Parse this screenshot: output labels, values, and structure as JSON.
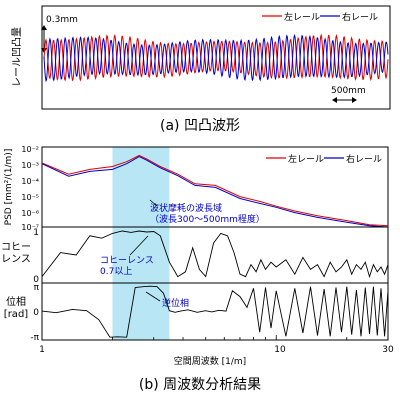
{
  "chart_data": [
    {
      "type": "line",
      "caption": "(a) 凹凸波形",
      "ylabel": "レール凹凸量",
      "scale_label": "0.3mm",
      "x_scale_label": "500mm",
      "legend_position": "top-right",
      "series": [
        {
          "name": "左レール",
          "color": "#e00000",
          "peaks": 45,
          "amplitude_mm": 0.3
        },
        {
          "name": "右レール",
          "color": "#0000cc",
          "peaks": 45,
          "amplitude_mm": 0.3
        }
      ]
    },
    {
      "type": "line",
      "caption": "(b) 周波数分析結果",
      "xlabel": "空間周波数 [1/m]",
      "x_scale": "log",
      "xlim": [
        1,
        30
      ],
      "xticks": [
        "1",
        "10",
        "30"
      ],
      "highlight_band": [
        2.0,
        3.5
      ],
      "panels": [
        {
          "ylabel": "PSD [mm²/(1/m)]",
          "y_scale": "log",
          "ylim": [
            1e-07,
            0.01
          ],
          "yticks": [
            "10⁻²",
            "10⁻³",
            "10⁻⁴",
            "10⁻⁵",
            "10⁻⁶",
            "10⁻⁷"
          ],
          "legend_position": "top-right",
          "annotation": "波状摩耗の波長域\n（波長300〜500mm程度）",
          "series": [
            {
              "name": "左レール",
              "color": "#e00000",
              "x": [
                1,
                1.3,
                1.6,
                2.0,
                2.3,
                2.6,
                2.8,
                3.2,
                3.8,
                4.5,
                5.5,
                7,
                8.5,
                10,
                12,
                15,
                20,
                25,
                30
              ],
              "y": [
                0.001,
                0.0002,
                0.0004,
                0.0006,
                0.0012,
                0.003,
                0.0018,
                0.0006,
                0.0002,
                5e-05,
                4e-05,
                8e-06,
                4e-06,
                2e-06,
                1e-06,
                5e-07,
                2.5e-07,
                1.4e-07,
                1.2e-07
              ]
            },
            {
              "name": "右レール",
              "color": "#0000cc",
              "x": [
                1,
                1.3,
                1.6,
                2.0,
                2.3,
                2.6,
                2.8,
                3.2,
                3.8,
                4.5,
                5.5,
                7,
                8.5,
                10,
                12,
                15,
                20,
                25,
                30
              ],
              "y": [
                0.0009,
                0.00015,
                0.0003,
                0.0004,
                0.0009,
                0.0025,
                0.0015,
                0.0005,
                0.00016,
                4e-05,
                3e-05,
                6e-06,
                3e-06,
                1.7e-06,
                8e-07,
                4e-07,
                2e-07,
                1.2e-07,
                1e-07
              ]
            }
          ]
        },
        {
          "ylabel": "コヒー\nレンス",
          "ylim": [
            0,
            1
          ],
          "yticks": [
            "1",
            "0"
          ],
          "annotation": "コヒーレンス\n0.7以上",
          "series": [
            {
              "name": "coherence",
              "color": "#000000",
              "x": [
                1,
                1.2,
                1.4,
                1.6,
                1.8,
                2.0,
                2.2,
                2.4,
                2.6,
                2.8,
                3.0,
                3.2,
                3.5,
                3.8,
                4.1,
                4.4,
                4.7,
                5.0,
                5.4,
                5.8,
                6.2,
                6.6,
                7.0,
                7.4,
                7.8,
                8.2,
                8.6,
                9.0,
                9.5,
                10,
                11,
                12,
                13,
                14,
                15,
                16,
                17,
                18,
                19,
                20,
                21,
                22,
                23,
                24,
                25,
                26,
                27,
                28,
                29,
                30
              ],
              "y": [
                0.05,
                0.55,
                0.5,
                0.9,
                0.85,
                0.95,
                1.0,
                0.97,
                1.0,
                0.98,
                0.99,
                0.9,
                0.35,
                0.05,
                0.15,
                0.65,
                0.2,
                0.05,
                0.75,
                0.95,
                0.9,
                0.55,
                0.1,
                0.05,
                0.3,
                0.15,
                0.4,
                0.2,
                0.35,
                0.25,
                0.4,
                0.1,
                0.45,
                0.2,
                0.3,
                0.05,
                0.35,
                0.15,
                0.25,
                0.4,
                0.1,
                0.3,
                0.2,
                0.35,
                0.05,
                0.3,
                0.15,
                0.25,
                0.1,
                0.3
              ]
            }
          ]
        },
        {
          "ylabel": "位相\n[rad]",
          "ylim": [
            -3.14,
            3.14
          ],
          "yticks": [
            "π",
            "0",
            "-π"
          ],
          "annotation": "逆位相",
          "series": [
            {
              "name": "phase",
              "color": "#000000",
              "x": [
                1,
                1.15,
                1.35,
                1.55,
                1.75,
                1.95,
                2.1,
                2.3,
                2.5,
                2.7,
                2.9,
                3.1,
                3.3,
                3.5,
                3.7,
                3.9,
                4.2,
                4.6,
                5.0,
                5.3,
                5.7,
                6.1,
                6.5,
                7.0,
                7.5,
                8.0,
                8.5,
                9.0,
                9.5,
                10,
                11,
                12,
                13,
                14,
                15,
                16,
                17,
                18,
                19,
                20,
                21,
                22,
                23,
                24,
                25,
                26,
                27,
                28,
                29,
                30
              ],
              "y": [
                0.05,
                -0.15,
                0.25,
                0.1,
                -1.0,
                -3.1,
                -3.05,
                -3.1,
                2.9,
                3.0,
                3.05,
                3.0,
                2.2,
                0.1,
                -0.1,
                0.05,
                0.2,
                -0.1,
                0.1,
                -0.05,
                0.15,
                0.05,
                2.5,
                1.8,
                0.5,
                2.8,
                -2.5,
                2.9,
                -2.0,
                2.5,
                -3.0,
                2.8,
                -2.6,
                3.0,
                -2.9,
                2.7,
                -3.0,
                2.9,
                -2.5,
                3.0,
                -2.8,
                2.6,
                -3.0,
                2.9,
                -2.7,
                3.0,
                -2.9,
                2.8,
                -3.0,
                2.5
              ]
            }
          ]
        }
      ]
    }
  ]
}
